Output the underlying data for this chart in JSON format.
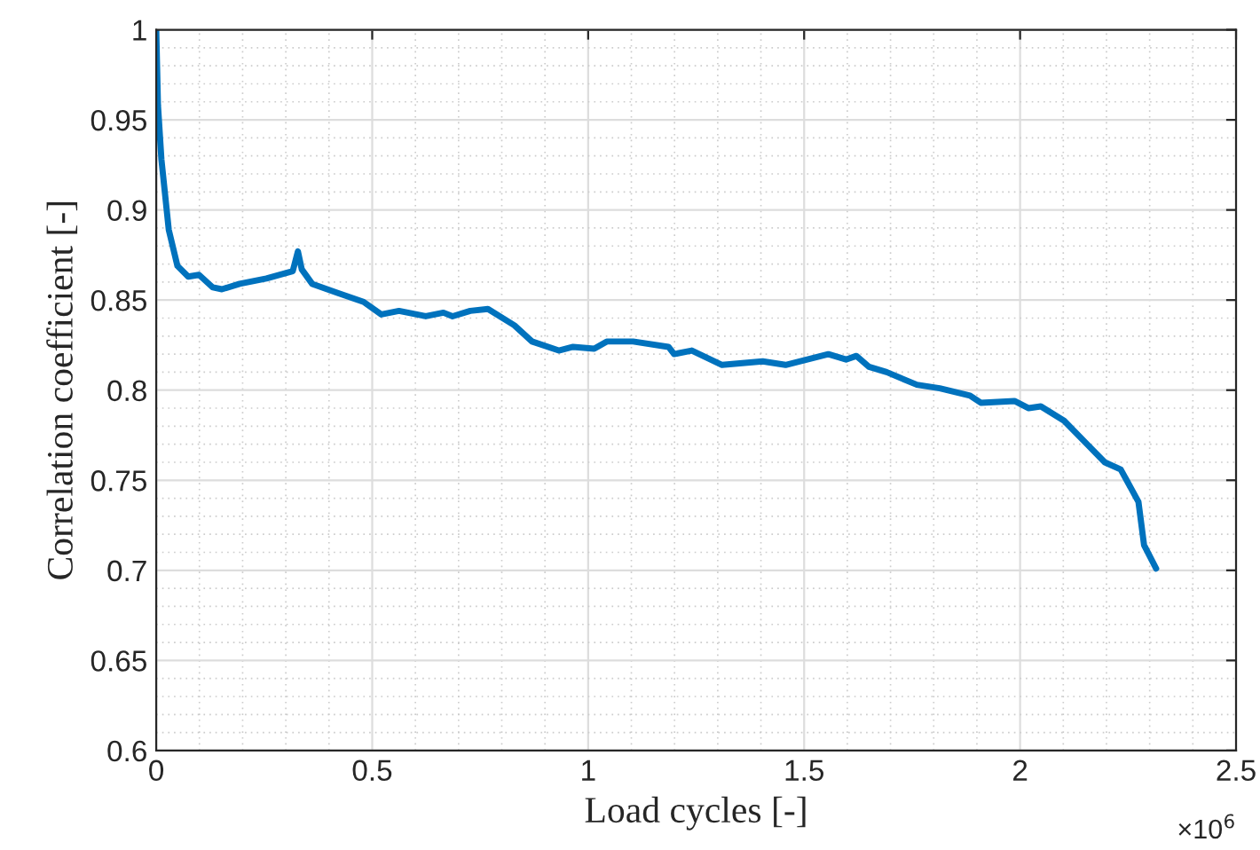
{
  "chart_data": {
    "type": "line",
    "xlabel": "Load cycles [-]",
    "ylabel": "Correlation coefficient [-]",
    "annotations": [
      "×10$^{6}$"
    ],
    "x": [
      0,
      0.004,
      0.012,
      0.029,
      0.049,
      0.074,
      0.099,
      0.131,
      0.152,
      0.193,
      0.255,
      0.316,
      0.328,
      0.337,
      0.361,
      0.419,
      0.48,
      0.521,
      0.562,
      0.624,
      0.665,
      0.686,
      0.727,
      0.768,
      0.829,
      0.87,
      0.932,
      0.965,
      1.014,
      1.043,
      1.104,
      1.186,
      1.199,
      1.24,
      1.31,
      1.404,
      1.457,
      1.556,
      1.597,
      1.621,
      1.65,
      1.691,
      1.761,
      1.814,
      1.884,
      1.909,
      1.987,
      2.02,
      2.048,
      2.102,
      2.155,
      2.196,
      2.233,
      2.274,
      2.287,
      2.315
    ],
    "series": [
      {
        "color": "#0072bd",
        "values": [
          1.0,
          0.958,
          0.928,
          0.889,
          0.869,
          0.863,
          0.864,
          0.857,
          0.856,
          0.859,
          0.862,
          0.866,
          0.877,
          0.867,
          0.859,
          0.854,
          0.849,
          0.842,
          0.844,
          0.841,
          0.843,
          0.841,
          0.844,
          0.845,
          0.836,
          0.827,
          0.822,
          0.824,
          0.823,
          0.827,
          0.827,
          0.824,
          0.82,
          0.822,
          0.814,
          0.816,
          0.814,
          0.82,
          0.817,
          0.819,
          0.813,
          0.81,
          0.803,
          0.801,
          0.797,
          0.793,
          0.794,
          0.79,
          0.791,
          0.783,
          0.77,
          0.76,
          0.756,
          0.738,
          0.714,
          0.701
        ]
      }
    ],
    "xlim": [
      0,
      2.5
    ],
    "xticks": [
      0,
      0.5,
      1,
      1.5,
      2,
      2.5
    ],
    "ylim": [
      0.6,
      1
    ],
    "yticks": [
      0.6,
      0.65,
      0.7,
      0.75,
      0.8,
      0.85,
      0.9,
      0.95,
      1
    ],
    "grid": true,
    "legend": false,
    "marker": "none",
    "line_style": "solid"
  }
}
